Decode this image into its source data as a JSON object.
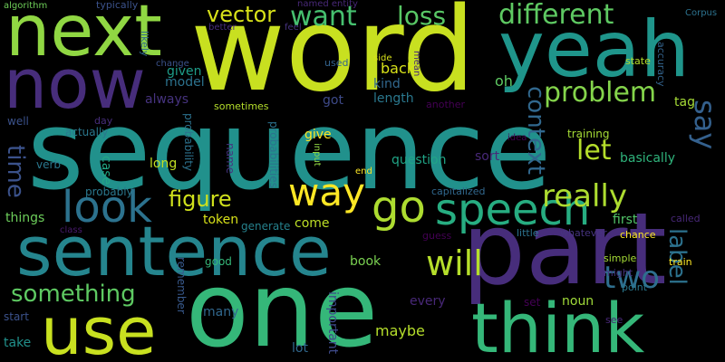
{
  "words": [
    {
      "text": "sequence",
      "color": "#21918c"
    },
    {
      "text": "word",
      "color": "#c8e020"
    },
    {
      "text": "part",
      "color": "#472d7b"
    },
    {
      "text": "one",
      "color": "#35b779"
    },
    {
      "text": "yeah",
      "color": "#1f958b"
    },
    {
      "text": "next",
      "color": "#90d743"
    },
    {
      "text": "sentence",
      "color": "#25858e"
    },
    {
      "text": "think",
      "color": "#35b779"
    },
    {
      "text": "now",
      "color": "#472d7b"
    },
    {
      "text": "use",
      "color": "#c8e020"
    },
    {
      "text": "speech",
      "color": "#27ad81"
    },
    {
      "text": "look",
      "color": "#2c728e"
    },
    {
      "text": "way",
      "color": "#fde725"
    },
    {
      "text": "go",
      "color": "#addc30"
    },
    {
      "text": "want",
      "color": "#46c06f"
    },
    {
      "text": "different",
      "color": "#5ec962"
    },
    {
      "text": "will",
      "color": "#b5de2b"
    },
    {
      "text": "really",
      "color": "#addc30"
    },
    {
      "text": "problem",
      "color": "#84d44b"
    },
    {
      "text": "something",
      "color": "#5ec962"
    },
    {
      "text": "figure",
      "color": "#d0e11c"
    },
    {
      "text": "vector",
      "color": "#d8e219"
    },
    {
      "text": "loss",
      "color": "#58c765"
    },
    {
      "text": "context",
      "color": "#31688e"
    },
    {
      "text": "let",
      "color": "#b5de2b"
    },
    {
      "text": "two",
      "color": "#2e6f8e"
    },
    {
      "text": "time",
      "color": "#3b528b"
    },
    {
      "text": "say",
      "color": "#34608d"
    },
    {
      "text": "label",
      "color": "#2c728e"
    },
    {
      "text": "given",
      "color": "#1e9d89"
    },
    {
      "text": "model",
      "color": "#2c728e"
    },
    {
      "text": "always",
      "color": "#46337f"
    },
    {
      "text": "sometimes",
      "color": "#b5de2b"
    },
    {
      "text": "back",
      "color": "#d8e219"
    },
    {
      "text": "kind",
      "color": "#31688e"
    },
    {
      "text": "length",
      "color": "#2a788e"
    },
    {
      "text": "got",
      "color": "#3e4a89"
    },
    {
      "text": "oh",
      "color": "#5ec962"
    },
    {
      "text": "tag",
      "color": "#a5db36"
    },
    {
      "text": "well",
      "color": "#3b528b"
    },
    {
      "text": "actually",
      "color": "#2a788e"
    },
    {
      "text": "verb",
      "color": "#2a788e"
    },
    {
      "text": "long",
      "color": "#c2df23"
    },
    {
      "text": "case",
      "color": "#22a785"
    },
    {
      "text": "probability",
      "color": "#2c728e"
    },
    {
      "text": "name",
      "color": "#46337f"
    },
    {
      "text": "probabilities",
      "color": "#2c728e"
    },
    {
      "text": "give",
      "color": "#fde725"
    },
    {
      "text": "input",
      "color": "#90d743"
    },
    {
      "text": "question",
      "color": "#20a486"
    },
    {
      "text": "sort",
      "color": "#482878"
    },
    {
      "text": "training",
      "color": "#a5db36"
    },
    {
      "text": "basically",
      "color": "#2fb47c"
    },
    {
      "text": "things",
      "color": "#6ccd5a"
    },
    {
      "text": "probably",
      "color": "#2a788e"
    },
    {
      "text": "token",
      "color": "#d8e219"
    },
    {
      "text": "generate",
      "color": "#26828e"
    },
    {
      "text": "come",
      "color": "#bddf26"
    },
    {
      "text": "first",
      "color": "#52c569"
    },
    {
      "text": "capitalized",
      "color": "#31688e"
    },
    {
      "text": "guess",
      "color": "#440154"
    },
    {
      "text": "little",
      "color": "#2c728e"
    },
    {
      "text": "whatever",
      "color": "#46337f"
    },
    {
      "text": "chance",
      "color": "#fde725"
    },
    {
      "text": "called",
      "color": "#482878"
    },
    {
      "text": "good",
      "color": "#35b779"
    },
    {
      "text": "remember",
      "color": "#38598c"
    },
    {
      "text": "book",
      "color": "#7ad151"
    },
    {
      "text": "simple",
      "color": "#a5db36"
    },
    {
      "text": "might",
      "color": "#46337f"
    },
    {
      "text": "train",
      "color": "#fde725"
    },
    {
      "text": "point",
      "color": "#2a788e"
    },
    {
      "text": "noun",
      "color": "#a0da39"
    },
    {
      "text": "set",
      "color": "#440154"
    },
    {
      "text": "every",
      "color": "#482878"
    },
    {
      "text": "many",
      "color": "#31688e"
    },
    {
      "text": "important",
      "color": "#3e4a89"
    },
    {
      "text": "maybe",
      "color": "#b5de2b"
    },
    {
      "text": "start",
      "color": "#3b528b"
    },
    {
      "text": "take",
      "color": "#21918c"
    },
    {
      "text": "lot",
      "color": "#31688e"
    },
    {
      "text": "see",
      "color": "#482878"
    },
    {
      "text": "end",
      "color": "#fde725"
    },
    {
      "text": "idea",
      "color": "#440154"
    },
    {
      "text": "another",
      "color": "#440154"
    },
    {
      "text": "day",
      "color": "#472d7b"
    },
    {
      "text": "class",
      "color": "#481a6c"
    },
    {
      "text": "algorithm",
      "color": "#6ece58"
    },
    {
      "text": "typically",
      "color": "#3b528b"
    },
    {
      "text": "named entity",
      "color": "#482878"
    },
    {
      "text": "better",
      "color": "#472d7b"
    },
    {
      "text": "feel",
      "color": "#46337f"
    },
    {
      "text": "Corpus",
      "color": "#2c728e"
    },
    {
      "text": "likely",
      "color": "#31688e"
    },
    {
      "text": "used",
      "color": "#33638d"
    },
    {
      "text": "change",
      "color": "#3b528b"
    },
    {
      "text": "side",
      "color": "#d8e219"
    },
    {
      "text": "mean",
      "color": "#482878"
    },
    {
      "text": "state",
      "color": "#b5de2b"
    },
    {
      "text": "accuracy",
      "color": "#33638d"
    }
  ]
}
